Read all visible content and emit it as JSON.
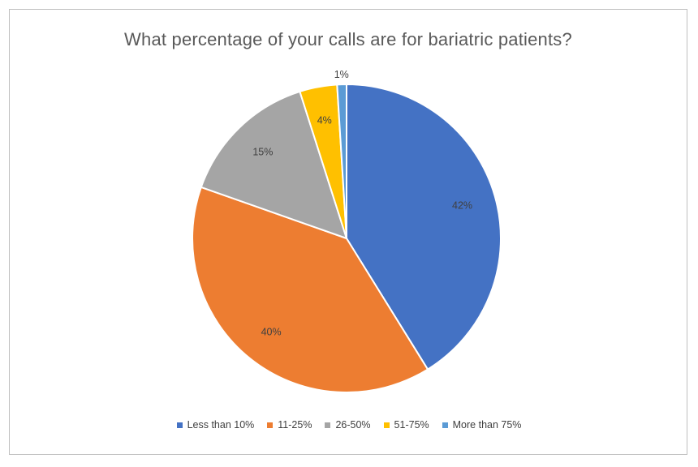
{
  "chart_data": {
    "type": "pie",
    "title": "What percentage of your calls are for bariatric patients?",
    "categories": [
      "Less than 10%",
      "11-25%",
      "26-50%",
      "51-75%",
      "More than 75%"
    ],
    "values": [
      42,
      40,
      15,
      4,
      1
    ],
    "data_labels": [
      "42%",
      "40%",
      "15%",
      "4%",
      "1%"
    ],
    "colors": [
      "#4472c4",
      "#ed7d31",
      "#a5a5a5",
      "#ffc000",
      "#5b9bd5"
    ],
    "legend_position": "bottom"
  }
}
